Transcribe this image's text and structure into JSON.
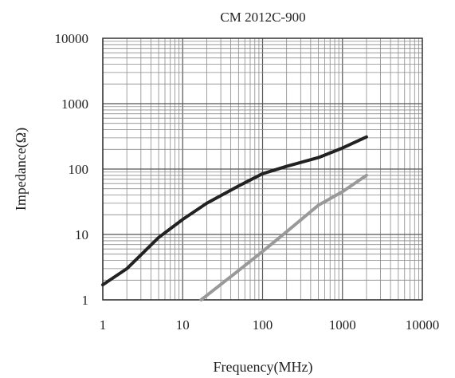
{
  "chart_data": {
    "type": "line",
    "title": "CM 2012C-900",
    "xlabel": "Frequency(MHz)",
    "ylabel": "Impedance(Ω)",
    "x_scale": "log",
    "y_scale": "log",
    "xlim": [
      1,
      10000
    ],
    "ylim": [
      1,
      10000
    ],
    "x_ticks": [
      "1",
      "10",
      "100",
      "1000",
      "10000"
    ],
    "y_ticks": [
      "1",
      "10",
      "100",
      "1000",
      "10000"
    ],
    "grid": true,
    "series": [
      {
        "color": "#222222",
        "points": [
          [
            1,
            1.7
          ],
          [
            2,
            3
          ],
          [
            5,
            9
          ],
          [
            10,
            17
          ],
          [
            20,
            30
          ],
          [
            50,
            55
          ],
          [
            100,
            85
          ],
          [
            200,
            110
          ],
          [
            500,
            150
          ],
          [
            1000,
            210
          ],
          [
            2000,
            310
          ]
        ]
      },
      {
        "color": "#999999",
        "points": [
          [
            17,
            1
          ],
          [
            50,
            2.8
          ],
          [
            100,
            5.5
          ],
          [
            200,
            11
          ],
          [
            500,
            28
          ],
          [
            1000,
            45
          ],
          [
            2000,
            80
          ]
        ]
      }
    ]
  }
}
